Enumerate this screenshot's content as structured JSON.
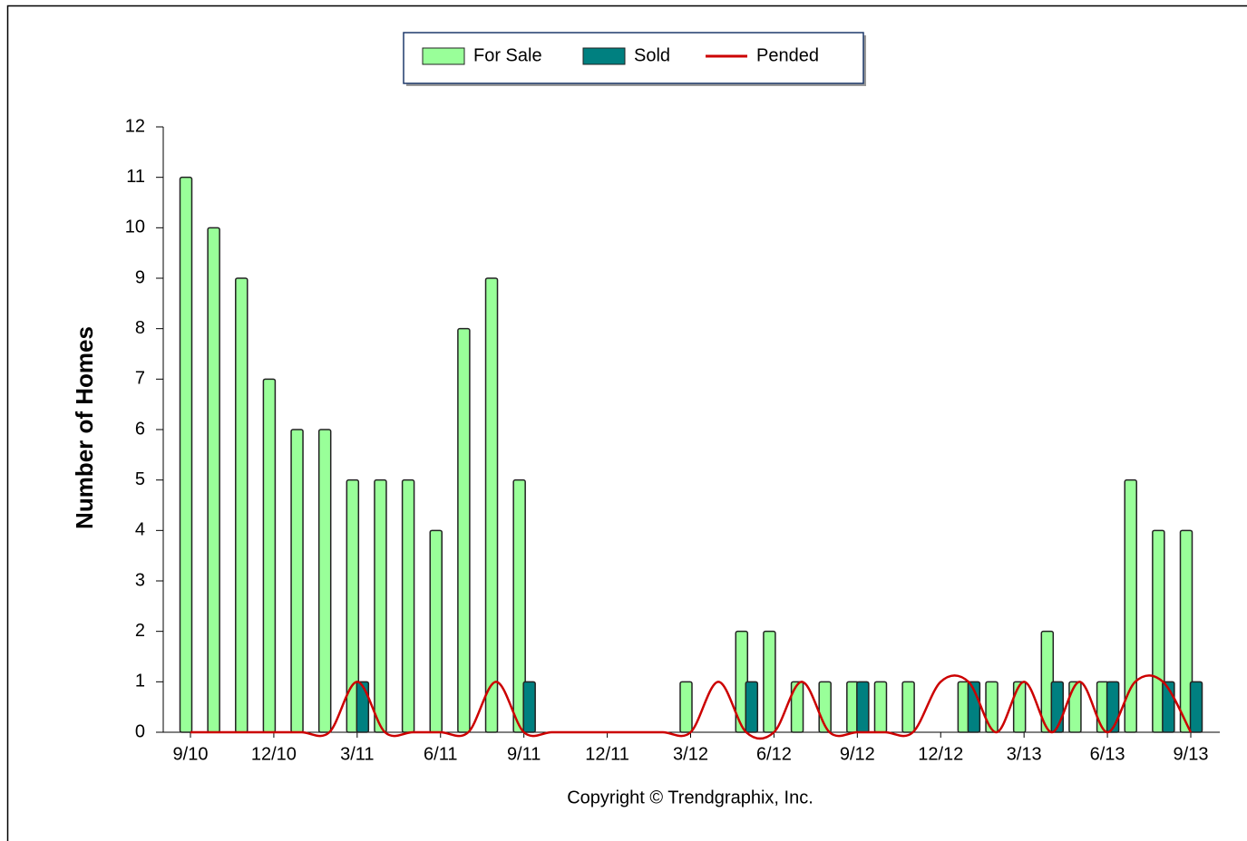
{
  "chart_data": {
    "type": "bar",
    "y_axis_label": "Number of Homes",
    "footer": "Copyright © Trendgraphix, Inc.",
    "categories": [
      "9/10",
      null,
      null,
      "12/10",
      null,
      null,
      "3/11",
      null,
      null,
      "6/11",
      null,
      null,
      "9/11",
      null,
      null,
      "12/11",
      null,
      null,
      "3/12",
      null,
      null,
      "6/12",
      null,
      null,
      "9/12",
      null,
      null,
      "12/12",
      null,
      null,
      "3/13",
      null,
      null,
      "6/13",
      null,
      null,
      "9/13"
    ],
    "series": [
      {
        "name": "For Sale",
        "color": "#99ff99",
        "values": [
          11,
          10,
          9,
          7,
          6,
          6,
          5,
          5,
          5,
          4,
          8,
          9,
          5,
          0,
          0,
          0,
          0,
          0,
          1,
          0,
          2,
          2,
          1,
          1,
          1,
          1,
          1,
          0,
          1,
          1,
          1,
          2,
          1,
          1,
          5,
          4,
          4
        ]
      },
      {
        "name": "Sold",
        "color": "#008080",
        "values": [
          0,
          0,
          0,
          0,
          0,
          0,
          1,
          0,
          0,
          0,
          0,
          0,
          1,
          0,
          0,
          0,
          0,
          0,
          0,
          0,
          1,
          0,
          0,
          0,
          1,
          0,
          0,
          0,
          1,
          0,
          0,
          1,
          0,
          1,
          0,
          1,
          1
        ]
      },
      {
        "name": "Pended",
        "type": "line",
        "color": "#cc0000",
        "values": [
          0,
          0,
          0,
          0,
          0,
          0,
          1,
          0,
          0,
          0,
          0,
          1,
          0,
          0,
          0,
          0,
          0,
          0,
          0,
          1,
          0,
          0,
          1,
          0,
          0,
          0,
          0,
          1,
          1,
          0,
          1,
          0,
          1,
          0,
          1,
          1,
          0
        ]
      }
    ],
    "ylim": [
      0,
      12
    ],
    "yticks": [
      0,
      1,
      2,
      3,
      4,
      5,
      6,
      7,
      8,
      9,
      10,
      11,
      12
    ]
  }
}
